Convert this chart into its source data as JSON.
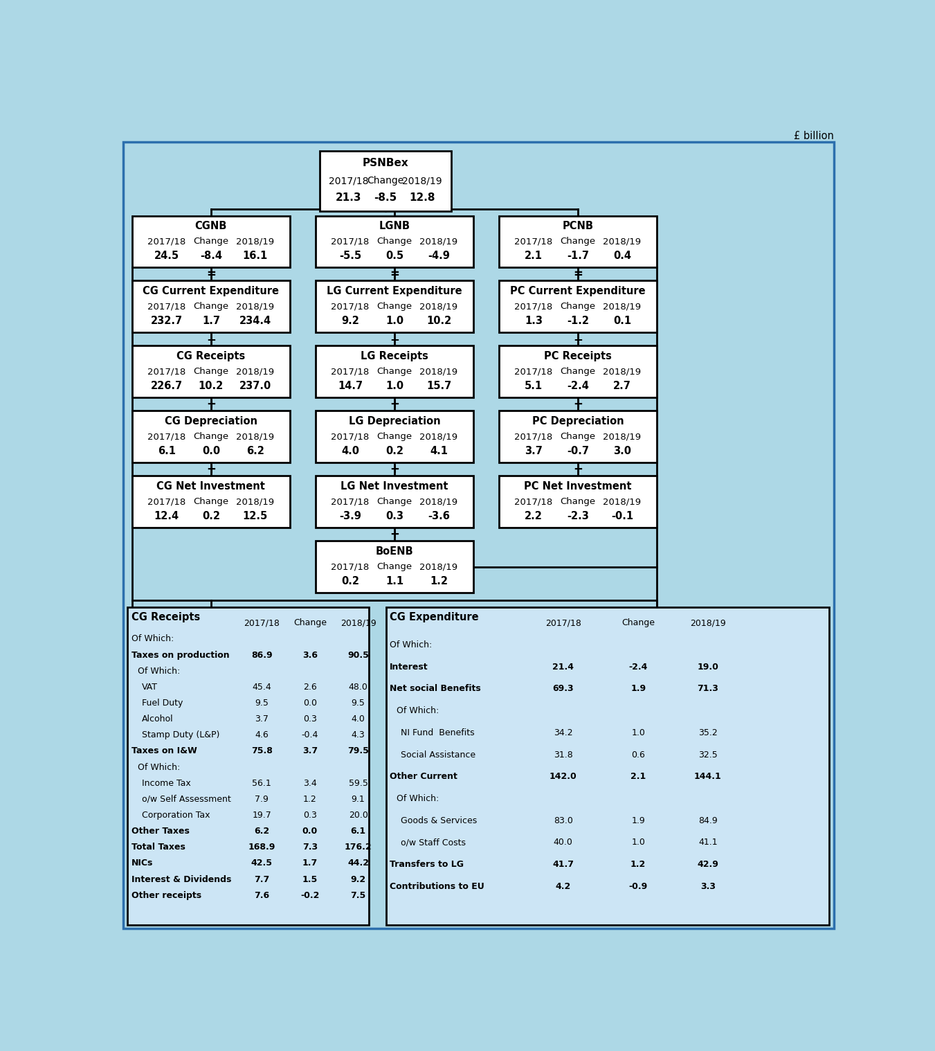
{
  "bg_color": "#add8e6",
  "box_bg_white": "#ffffff",
  "box_bg_light": "#ddeeff",
  "box_edge": "#000000",
  "title_annotation": "£ billion",
  "boxes": {
    "PSNBex": {
      "title": "PSNBex",
      "c1": "2017/18",
      "c2": "Change",
      "c3": "2018/19",
      "v1": "21.3",
      "v2": "-8.5",
      "v3": "12.8"
    },
    "CGNB": {
      "title": "CGNB",
      "c1": "2017/18",
      "c2": "Change",
      "c3": "2018/19",
      "v1": "24.5",
      "v2": "-8.4",
      "v3": "16.1"
    },
    "LGNB": {
      "title": "LGNB",
      "c1": "2017/18",
      "c2": "Change",
      "c3": "2018/19",
      "v1": "-5.5",
      "v2": "0.5",
      "v3": "-4.9"
    },
    "PCNB": {
      "title": "PCNB",
      "c1": "2017/18",
      "c2": "Change",
      "c3": "2018/19",
      "v1": "2.1",
      "v2": "-1.7",
      "v3": "0.4"
    },
    "CG_CE": {
      "title": "CG Current Expenditure",
      "c1": "2017/18",
      "c2": "Change",
      "c3": "2018/19",
      "v1": "232.7",
      "v2": "1.7",
      "v3": "234.4"
    },
    "LG_CE": {
      "title": "LG Current Expenditure",
      "c1": "2017/18",
      "c2": "Change",
      "c3": "2018/19",
      "v1": "9.2",
      "v2": "1.0",
      "v3": "10.2"
    },
    "PC_CE": {
      "title": "PC Current Expenditure",
      "c1": "2017/18",
      "c2": "Change",
      "c3": "2018/19",
      "v1": "1.3",
      "v2": "-1.2",
      "v3": "0.1"
    },
    "CG_R": {
      "title": "CG Receipts",
      "c1": "2017/18",
      "c2": "Change",
      "c3": "2018/19",
      "v1": "226.7",
      "v2": "10.2",
      "v3": "237.0"
    },
    "LG_R": {
      "title": "LG Receipts",
      "c1": "2017/18",
      "c2": "Change",
      "c3": "2018/19",
      "v1": "14.7",
      "v2": "1.0",
      "v3": "15.7"
    },
    "PC_R": {
      "title": "PC Receipts",
      "c1": "2017/18",
      "c2": "Change",
      "c3": "2018/19",
      "v1": "5.1",
      "v2": "-2.4",
      "v3": "2.7"
    },
    "CG_D": {
      "title": "CG Depreciation",
      "c1": "2017/18",
      "c2": "Change",
      "c3": "2018/19",
      "v1": "6.1",
      "v2": "0.0",
      "v3": "6.2"
    },
    "LG_D": {
      "title": "LG Depreciation",
      "c1": "2017/18",
      "c2": "Change",
      "c3": "2018/19",
      "v1": "4.0",
      "v2": "0.2",
      "v3": "4.1"
    },
    "PC_D": {
      "title": "PC Depreciation",
      "c1": "2017/18",
      "c2": "Change",
      "c3": "2018/19",
      "v1": "3.7",
      "v2": "-0.7",
      "v3": "3.0"
    },
    "CG_NI": {
      "title": "CG Net Investment",
      "c1": "2017/18",
      "c2": "Change",
      "c3": "2018/19",
      "v1": "12.4",
      "v2": "0.2",
      "v3": "12.5"
    },
    "LG_NI": {
      "title": "LG Net Investment",
      "c1": "2017/18",
      "c2": "Change",
      "c3": "2018/19",
      "v1": "-3.9",
      "v2": "0.3",
      "v3": "-3.6"
    },
    "PC_NI": {
      "title": "PC Net Investment",
      "c1": "2017/18",
      "c2": "Change",
      "c3": "2018/19",
      "v1": "2.2",
      "v2": "-2.3",
      "v3": "-0.1"
    },
    "BoENB": {
      "title": "BoENB",
      "c1": "2017/18",
      "c2": "Change",
      "c3": "2018/19",
      "v1": "0.2",
      "v2": "1.1",
      "v3": "1.2"
    }
  },
  "cg_receipts_rows": [
    {
      "label": "Of Which:",
      "indent": 0,
      "bold": false,
      "v1": "",
      "v2": "",
      "v3": ""
    },
    {
      "label": "Taxes on production",
      "indent": 0,
      "bold": true,
      "v1": "86.9",
      "v2": "3.6",
      "v3": "90.5"
    },
    {
      "label": "Of Which:",
      "indent": 12,
      "bold": false,
      "v1": "",
      "v2": "",
      "v3": ""
    },
    {
      "label": "VAT",
      "indent": 20,
      "bold": false,
      "v1": "45.4",
      "v2": "2.6",
      "v3": "48.0"
    },
    {
      "label": "Fuel Duty",
      "indent": 20,
      "bold": false,
      "v1": "9.5",
      "v2": "0.0",
      "v3": "9.5"
    },
    {
      "label": "Alcohol",
      "indent": 20,
      "bold": false,
      "v1": "3.7",
      "v2": "0.3",
      "v3": "4.0"
    },
    {
      "label": "Stamp Duty (L&P)",
      "indent": 20,
      "bold": false,
      "v1": "4.6",
      "v2": "-0.4",
      "v3": "4.3"
    },
    {
      "label": "Taxes on I&W",
      "indent": 0,
      "bold": true,
      "v1": "75.8",
      "v2": "3.7",
      "v3": "79.5"
    },
    {
      "label": "Of Which:",
      "indent": 12,
      "bold": false,
      "v1": "",
      "v2": "",
      "v3": ""
    },
    {
      "label": "Income Tax",
      "indent": 20,
      "bold": false,
      "v1": "56.1",
      "v2": "3.4",
      "v3": "59.5"
    },
    {
      "label": "o/w Self Assessment",
      "indent": 20,
      "bold": false,
      "v1": "7.9",
      "v2": "1.2",
      "v3": "9.1"
    },
    {
      "label": "Corporation Tax",
      "indent": 20,
      "bold": false,
      "v1": "19.7",
      "v2": "0.3",
      "v3": "20.0"
    },
    {
      "label": "Other Taxes",
      "indent": 0,
      "bold": true,
      "v1": "6.2",
      "v2": "0.0",
      "v3": "6.1"
    },
    {
      "label": "Total Taxes",
      "indent": 0,
      "bold": true,
      "v1": "168.9",
      "v2": "7.3",
      "v3": "176.2"
    },
    {
      "label": "NICs",
      "indent": 0,
      "bold": true,
      "v1": "42.5",
      "v2": "1.7",
      "v3": "44.2"
    },
    {
      "label": "Interest & Dividends",
      "indent": 0,
      "bold": true,
      "v1": "7.7",
      "v2": "1.5",
      "v3": "9.2"
    },
    {
      "label": "Other receipts",
      "indent": 0,
      "bold": true,
      "v1": "7.6",
      "v2": "-0.2",
      "v3": "7.5"
    }
  ],
  "cg_expenditure_rows": [
    {
      "label": "Of Which:",
      "indent": 0,
      "bold": false,
      "v1": "",
      "v2": "",
      "v3": ""
    },
    {
      "label": "Interest",
      "indent": 0,
      "bold": true,
      "v1": "21.4",
      "v2": "-2.4",
      "v3": "19.0"
    },
    {
      "label": "Net social Benefits",
      "indent": 0,
      "bold": true,
      "v1": "69.3",
      "v2": "1.9",
      "v3": "71.3"
    },
    {
      "label": "Of Which:",
      "indent": 12,
      "bold": false,
      "v1": "",
      "v2": "",
      "v3": ""
    },
    {
      "label": "NI Fund  Benefits",
      "indent": 20,
      "bold": false,
      "v1": "34.2",
      "v2": "1.0",
      "v3": "35.2"
    },
    {
      "label": "Social Assistance",
      "indent": 20,
      "bold": false,
      "v1": "31.8",
      "v2": "0.6",
      "v3": "32.5"
    },
    {
      "label": "Other Current",
      "indent": 0,
      "bold": true,
      "v1": "142.0",
      "v2": "2.1",
      "v3": "144.1"
    },
    {
      "label": "Of Which:",
      "indent": 12,
      "bold": false,
      "v1": "",
      "v2": "",
      "v3": ""
    },
    {
      "label": "Goods & Services",
      "indent": 20,
      "bold": false,
      "v1": "83.0",
      "v2": "1.9",
      "v3": "84.9"
    },
    {
      "label": "o/w Staff Costs",
      "indent": 20,
      "bold": false,
      "v1": "40.0",
      "v2": "1.0",
      "v3": "41.1"
    },
    {
      "label": "Transfers to LG",
      "indent": 0,
      "bold": true,
      "v1": "41.7",
      "v2": "1.2",
      "v3": "42.9"
    },
    {
      "label": "Contributions to EU",
      "indent": 0,
      "bold": true,
      "v1": "4.2",
      "v2": "-0.9",
      "v3": "3.3"
    }
  ]
}
